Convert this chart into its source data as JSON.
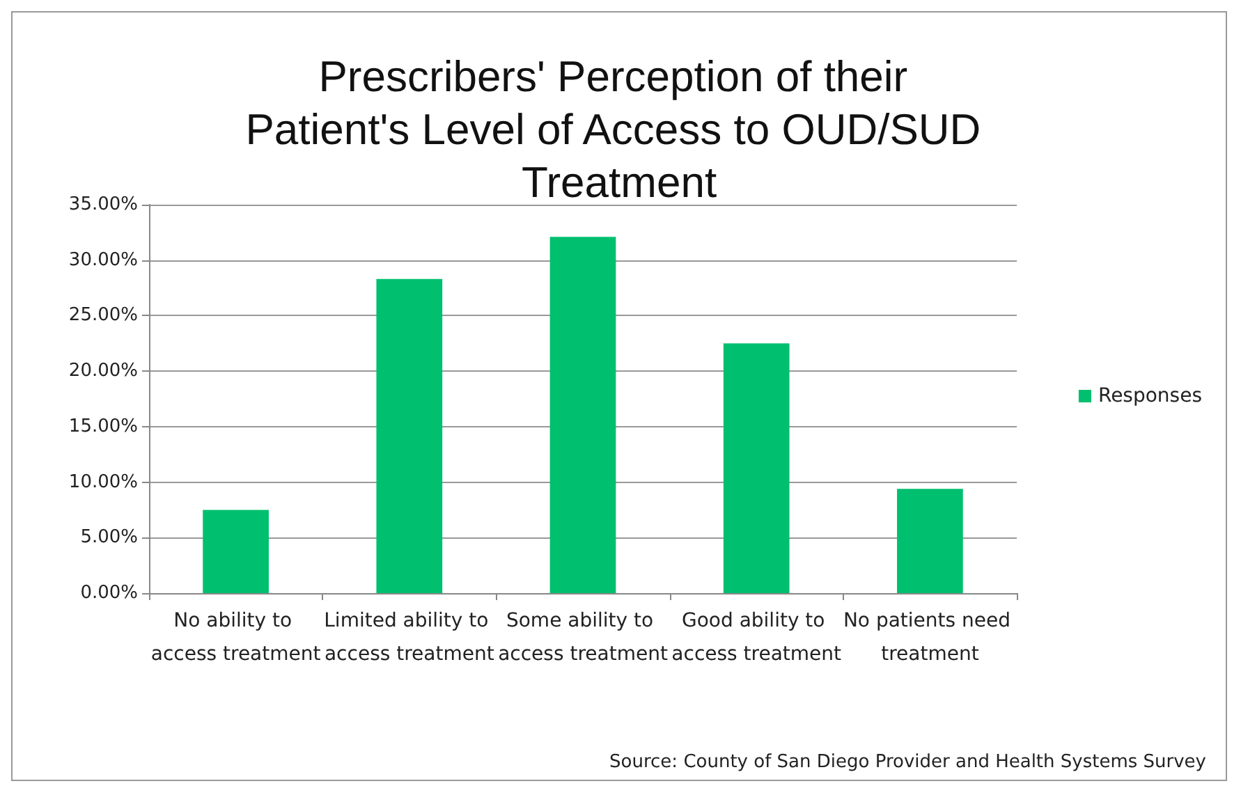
{
  "chart_data": {
    "type": "bar",
    "title": "Prescribers' Perception of their Patient's Level of Access to OUD/SUD Treatment",
    "categories": [
      "No ability to access treatment",
      "Limited ability to access treatment",
      "Some ability to access treatment",
      "Good ability to access treatment",
      "No patients need treatment"
    ],
    "series": [
      {
        "name": "Responses",
        "color": "#00bf6f",
        "values": [
          7.5,
          28.3,
          32.1,
          22.5,
          9.4
        ]
      }
    ],
    "ylim": [
      0,
      35
    ],
    "yticks": [
      {
        "value": 0,
        "label": "0.00%"
      },
      {
        "value": 5,
        "label": "5.00%"
      },
      {
        "value": 10,
        "label": "10.00%"
      },
      {
        "value": 15,
        "label": "15.00%"
      },
      {
        "value": 20,
        "label": "20.00%"
      },
      {
        "value": 25,
        "label": "25.00%"
      },
      {
        "value": 30,
        "label": "30.00%"
      },
      {
        "value": 35,
        "label": "35.00%"
      }
    ],
    "grid": "y",
    "legend": "right",
    "annotations": [
      "Source: County of San Diego Provider and Health Systems Survey"
    ]
  }
}
